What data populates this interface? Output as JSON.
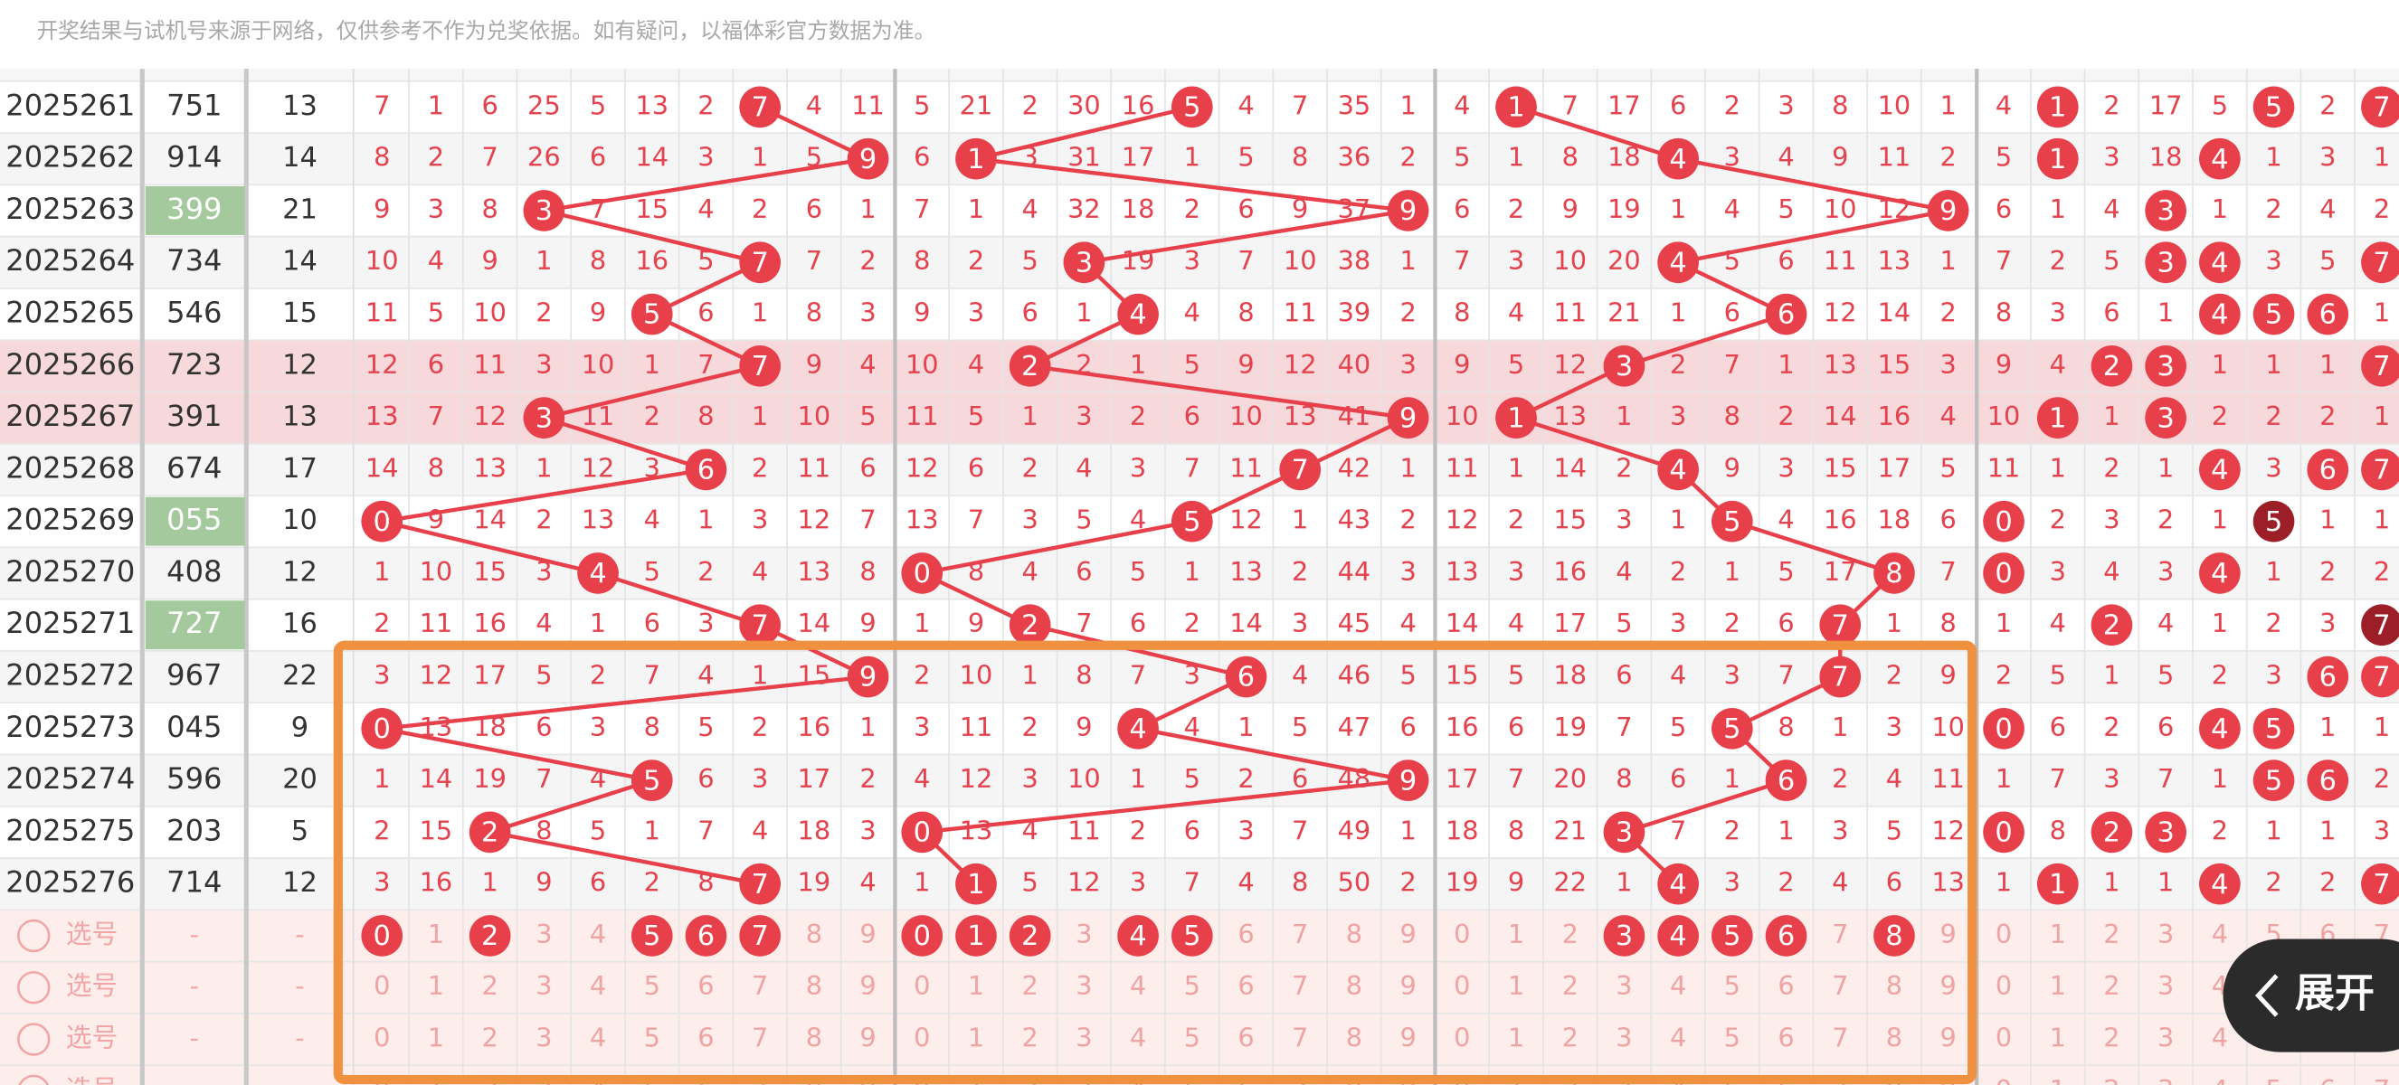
{
  "notice": "开奖结果与试机号来源于网络，仅供参考不作为兑奖依据。如有疑问，以福体彩官方数据为准。",
  "rows": [
    {
      "period": "2025261",
      "number": "751",
      "sum": 13,
      "hundreds": [
        7,
        1,
        6,
        25,
        5,
        13,
        2,
        7,
        4,
        11
      ],
      "tens": [
        5,
        21,
        2,
        30,
        16,
        5,
        4,
        7,
        35,
        1
      ],
      "units": [
        4,
        1,
        7,
        17,
        6,
        2,
        3,
        8,
        10,
        1
      ],
      "distribution": [
        4,
        1,
        2,
        17,
        5,
        5,
        2,
        7
      ]
    },
    {
      "period": "2025262",
      "number": "914",
      "sum": 14,
      "hundreds": [
        8,
        2,
        7,
        26,
        6,
        14,
        3,
        1,
        5,
        9
      ],
      "tens": [
        6,
        1,
        3,
        31,
        17,
        1,
        5,
        8,
        36,
        2
      ],
      "units": [
        5,
        1,
        8,
        18,
        4,
        3,
        4,
        9,
        11,
        2
      ],
      "distribution": [
        5,
        1,
        3,
        18,
        4,
        1,
        3,
        1
      ]
    },
    {
      "period": "2025263",
      "number": "399",
      "sum": 21,
      "hundreds": [
        9,
        3,
        8,
        3,
        7,
        15,
        4,
        2,
        6,
        1
      ],
      "tens": [
        7,
        1,
        4,
        32,
        18,
        2,
        6,
        9,
        37,
        9
      ],
      "units": [
        6,
        2,
        9,
        19,
        1,
        4,
        5,
        10,
        12,
        9
      ],
      "distribution": [
        6,
        1,
        4,
        3,
        1,
        2,
        4,
        2
      ]
    },
    {
      "period": "2025264",
      "number": "734",
      "sum": 14,
      "hundreds": [
        10,
        4,
        9,
        1,
        8,
        16,
        5,
        7,
        7,
        2
      ],
      "tens": [
        8,
        2,
        5,
        3,
        19,
        3,
        7,
        10,
        38,
        1
      ],
      "units": [
        7,
        3,
        10,
        20,
        4,
        5,
        6,
        11,
        13,
        1
      ],
      "distribution": [
        7,
        2,
        5,
        3,
        4,
        3,
        5,
        7
      ]
    },
    {
      "period": "2025265",
      "number": "546",
      "sum": 15,
      "hundreds": [
        11,
        5,
        10,
        2,
        9,
        5,
        6,
        1,
        8,
        3
      ],
      "tens": [
        9,
        3,
        6,
        1,
        4,
        4,
        8,
        11,
        39,
        2
      ],
      "units": [
        8,
        4,
        11,
        21,
        1,
        6,
        6,
        12,
        14,
        2
      ],
      "distribution": [
        8,
        3,
        6,
        1,
        4,
        5,
        6,
        1
      ]
    },
    {
      "period": "2025266",
      "number": "723",
      "sum": 12,
      "highlighted": true,
      "hundreds": [
        12,
        6,
        11,
        3,
        10,
        1,
        7,
        7,
        9,
        4
      ],
      "tens": [
        10,
        4,
        2,
        2,
        1,
        5,
        9,
        12,
        40,
        3
      ],
      "units": [
        9,
        5,
        12,
        3,
        2,
        7,
        1,
        13,
        15,
        3
      ],
      "distribution": [
        9,
        4,
        2,
        3,
        1,
        1,
        1,
        7
      ]
    },
    {
      "period": "2025267",
      "number": "391",
      "sum": 13,
      "highlighted": true,
      "hundreds": [
        13,
        7,
        12,
        3,
        11,
        2,
        8,
        1,
        10,
        5
      ],
      "tens": [
        11,
        5,
        1,
        3,
        2,
        6,
        10,
        13,
        41,
        9
      ],
      "units": [
        10,
        1,
        13,
        1,
        3,
        8,
        2,
        14,
        16,
        4
      ],
      "distribution": [
        10,
        1,
        1,
        3,
        2,
        2,
        2,
        1
      ]
    },
    {
      "period": "2025268",
      "number": "674",
      "sum": 17,
      "hundreds": [
        14,
        8,
        13,
        1,
        12,
        3,
        6,
        2,
        11,
        6
      ],
      "tens": [
        12,
        6,
        2,
        4,
        3,
        7,
        11,
        7,
        42,
        1
      ],
      "units": [
        11,
        1,
        14,
        2,
        4,
        9,
        3,
        15,
        17,
        5
      ],
      "distribution": [
        11,
        1,
        2,
        1,
        4,
        3,
        6,
        7
      ]
    },
    {
      "period": "2025269",
      "number": "055",
      "sum": 10,
      "hundreds": [
        0,
        9,
        14,
        2,
        13,
        4,
        1,
        3,
        12,
        7
      ],
      "tens": [
        13,
        7,
        3,
        5,
        4,
        5,
        12,
        1,
        43,
        2
      ],
      "units": [
        12,
        2,
        15,
        3,
        1,
        5,
        4,
        16,
        18,
        6
      ],
      "distribution": [
        0,
        2,
        3,
        2,
        1,
        5,
        1,
        1
      ]
    },
    {
      "period": "2025270",
      "number": "408",
      "sum": 12,
      "hundreds": [
        1,
        10,
        15,
        3,
        4,
        5,
        2,
        4,
        13,
        8
      ],
      "tens": [
        0,
        8,
        4,
        6,
        5,
        1,
        13,
        2,
        44,
        3
      ],
      "units": [
        13,
        3,
        16,
        4,
        2,
        1,
        5,
        17,
        8,
        7
      ],
      "distribution": [
        0,
        3,
        4,
        3,
        4,
        1,
        2,
        2
      ]
    },
    {
      "period": "2025271",
      "number": "727",
      "sum": 16,
      "hundreds": [
        2,
        11,
        16,
        4,
        1,
        6,
        3,
        7,
        14,
        9
      ],
      "tens": [
        1,
        9,
        2,
        7,
        6,
        2,
        14,
        3,
        45,
        4
      ],
      "units": [
        14,
        4,
        17,
        5,
        3,
        2,
        6,
        7,
        1,
        8
      ],
      "distribution": [
        1,
        4,
        2,
        4,
        1,
        2,
        3,
        7
      ]
    },
    {
      "period": "2025272",
      "number": "967",
      "sum": 22,
      "hundreds": [
        3,
        12,
        17,
        5,
        2,
        7,
        4,
        1,
        15,
        9
      ],
      "tens": [
        2,
        10,
        1,
        8,
        7,
        3,
        6,
        4,
        46,
        5
      ],
      "units": [
        15,
        5,
        18,
        6,
        4,
        3,
        7,
        7,
        2,
        9
      ],
      "distribution": [
        2,
        5,
        1,
        5,
        2,
        3,
        6,
        7
      ]
    },
    {
      "period": "2025273",
      "number": "045",
      "sum": 9,
      "hundreds": [
        0,
        13,
        18,
        6,
        3,
        8,
        5,
        2,
        16,
        1
      ],
      "tens": [
        3,
        11,
        2,
        9,
        4,
        4,
        1,
        5,
        47,
        6
      ],
      "units": [
        16,
        6,
        19,
        7,
        5,
        5,
        8,
        1,
        3,
        10
      ],
      "distribution": [
        0,
        6,
        2,
        6,
        4,
        5,
        1,
        1
      ]
    },
    {
      "period": "2025274",
      "number": "596",
      "sum": 20,
      "hundreds": [
        1,
        14,
        19,
        7,
        4,
        5,
        6,
        3,
        17,
        2
      ],
      "tens": [
        4,
        12,
        3,
        10,
        1,
        5,
        2,
        6,
        48,
        9
      ],
      "units": [
        17,
        7,
        20,
        8,
        6,
        1,
        6,
        2,
        4,
        11
      ],
      "distribution": [
        1,
        7,
        3,
        7,
        1,
        5,
        6,
        2
      ]
    },
    {
      "period": "2025275",
      "number": "203",
      "sum": 5,
      "hundreds": [
        2,
        15,
        2,
        8,
        5,
        1,
        7,
        4,
        18,
        3
      ],
      "tens": [
        0,
        13,
        4,
        11,
        2,
        6,
        3,
        7,
        49,
        1
      ],
      "units": [
        18,
        8,
        21,
        3,
        7,
        2,
        1,
        3,
        5,
        12
      ],
      "distribution": [
        0,
        8,
        2,
        3,
        2,
        1,
        1,
        3
      ]
    },
    {
      "period": "2025276",
      "number": "714",
      "sum": 12,
      "hundreds": [
        3,
        16,
        1,
        9,
        6,
        2,
        8,
        7,
        19,
        4
      ],
      "tens": [
        1,
        1,
        5,
        12,
        3,
        7,
        4,
        8,
        50,
        2
      ],
      "units": [
        19,
        9,
        22,
        1,
        4,
        3,
        2,
        4,
        6,
        13
      ],
      "distribution": [
        1,
        1,
        1,
        1,
        4,
        2,
        2,
        7
      ]
    }
  ],
  "select_rows": [
    {
      "label": "选号",
      "number": "-",
      "sum": "-",
      "selected": {
        "hundreds": [
          0,
          2,
          5,
          6,
          7
        ],
        "tens": [
          0,
          1,
          2,
          4,
          5
        ],
        "units": [
          3,
          4,
          5,
          6,
          8
        ]
      }
    },
    {
      "label": "选号",
      "number": "-",
      "sum": "-"
    },
    {
      "label": "选号",
      "number": "-",
      "sum": "-"
    },
    {
      "label": "选号",
      "number": "-",
      "sum": "-"
    }
  ],
  "select_digits": [
    0,
    1,
    2,
    3,
    4,
    5,
    6,
    7,
    8,
    9
  ],
  "expand_button": "展开"
}
